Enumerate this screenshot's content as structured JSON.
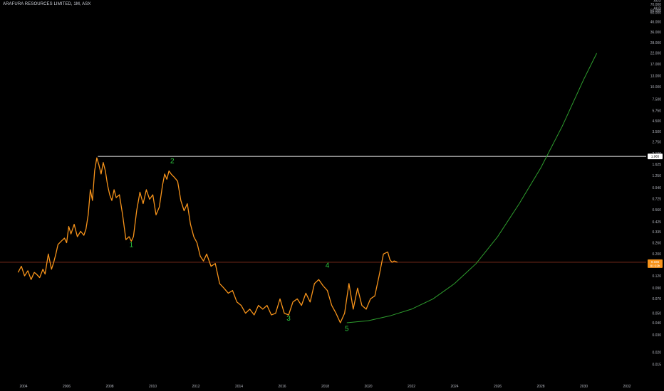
{
  "header": {
    "title": "ARAFURA RESOURCES LIMITED, 1M, ASX"
  },
  "colors": {
    "background": "#000000",
    "price_line": "#f7931a",
    "projection": "#2e9e2e",
    "resistance": "#d9d9d9",
    "current_price_line": "#7a2a1a",
    "wave_labels": "#2ecc40",
    "price_badge": "#f7931a",
    "resistance_badge": "#ffffff"
  },
  "chart_data": {
    "type": "line",
    "title": "ARAFURA RESOURCES LIMITED, 1M, ASX",
    "xlabel": "",
    "ylabel": "",
    "y_scale": "log",
    "currency": "AUD",
    "xlim": [
      2003.5,
      2033.5
    ],
    "ylim": [
      0.011,
      80
    ],
    "grid": false,
    "x_ticks": [
      "2004",
      "2006",
      "2008",
      "2010",
      "2012",
      "2014",
      "2016",
      "2018",
      "2020",
      "2022",
      "2024",
      "2026",
      "2028",
      "2030",
      "2032"
    ],
    "y_ticks": [
      "0.015",
      "0.020",
      "0.030",
      "0.040",
      "0.050",
      "0.070",
      "0.090",
      "0.120",
      "0.155",
      "0.200",
      "0.260",
      "0.335",
      "0.425",
      "0.560",
      "0.725",
      "0.940",
      "1.250",
      "1.625",
      "2.100",
      "2.750",
      "3.500",
      "4.500",
      "5.750",
      "7.500",
      "10.000",
      "13.000",
      "17.000",
      "22.000",
      "28.000",
      "36.000",
      "46.000",
      "60.000"
    ],
    "series": [
      {
        "x": [
          2003.75,
          2003.9,
          2004.05,
          2004.2,
          2004.35,
          2004.5,
          2004.6,
          2004.75,
          2004.9,
          2005.0,
          2005.15,
          2005.3,
          2005.4,
          2005.5,
          2005.6,
          2005.75,
          2005.9,
          2006.0,
          2006.1,
          2006.2,
          2006.35,
          2006.5,
          2006.65,
          2006.8,
          2006.9,
          2007.0,
          2007.1,
          2007.2,
          2007.3,
          2007.4,
          2007.5,
          2007.6,
          2007.7,
          2007.8,
          2007.9,
          2008.0,
          2008.1,
          2008.2,
          2008.3,
          2008.45,
          2008.6,
          2008.75,
          2008.9,
          2009.0,
          2009.1,
          2009.25,
          2009.4,
          2009.55,
          2009.7,
          2009.85,
          2010.0,
          2010.15,
          2010.3,
          2010.45,
          2010.55,
          2010.65,
          2010.75,
          2010.85,
          2011.0,
          2011.15,
          2011.3,
          2011.45,
          2011.6,
          2011.75,
          2011.9,
          2012.05,
          2012.2,
          2012.35,
          2012.5,
          2012.7,
          2012.9,
          2013.1,
          2013.3,
          2013.5,
          2013.7,
          2013.9,
          2014.1,
          2014.3,
          2014.5,
          2014.7,
          2014.9,
          2015.1,
          2015.3,
          2015.5,
          2015.7,
          2015.9,
          2016.1,
          2016.3,
          2016.5,
          2016.7,
          2016.9,
          2017.1,
          2017.3,
          2017.5,
          2017.7,
          2017.9,
          2018.1,
          2018.3,
          2018.5,
          2018.7,
          2018.9,
          2019.1,
          2019.3,
          2019.5,
          2019.7,
          2019.9,
          2020.1,
          2020.3,
          2020.5,
          2020.7,
          2020.9,
          2021.0,
          2021.1,
          2021.2,
          2021.35
        ],
        "y": [
          0.13,
          0.15,
          0.12,
          0.135,
          0.11,
          0.13,
          0.125,
          0.115,
          0.14,
          0.125,
          0.2,
          0.14,
          0.165,
          0.2,
          0.25,
          0.27,
          0.29,
          0.26,
          0.38,
          0.32,
          0.4,
          0.3,
          0.34,
          0.31,
          0.36,
          0.5,
          0.9,
          0.7,
          1.4,
          1.9,
          1.6,
          1.3,
          1.7,
          1.4,
          1.0,
          0.8,
          0.7,
          0.9,
          0.75,
          0.8,
          0.5,
          0.28,
          0.3,
          0.27,
          0.3,
          0.55,
          0.85,
          0.65,
          0.9,
          0.72,
          0.8,
          0.5,
          0.6,
          1.0,
          1.3,
          1.15,
          1.4,
          1.3,
          1.2,
          1.1,
          0.7,
          0.55,
          0.65,
          0.4,
          0.3,
          0.26,
          0.19,
          0.17,
          0.2,
          0.15,
          0.16,
          0.1,
          0.09,
          0.08,
          0.085,
          0.065,
          0.06,
          0.05,
          0.055,
          0.048,
          0.06,
          0.055,
          0.06,
          0.048,
          0.05,
          0.07,
          0.05,
          0.048,
          0.065,
          0.07,
          0.06,
          0.08,
          0.065,
          0.1,
          0.11,
          0.095,
          0.085,
          0.06,
          0.05,
          0.04,
          0.05,
          0.1,
          0.055,
          0.09,
          0.06,
          0.055,
          0.07,
          0.075,
          0.12,
          0.2,
          0.21,
          0.175,
          0.165,
          0.17,
          0.165
        ]
      }
    ],
    "resistance_level": 1.965,
    "current_price": 0.165,
    "badges": {
      "resistance": "1.965",
      "current_price": "0.165",
      "countdown": "81:22h"
    },
    "wave_labels": [
      {
        "label": "1",
        "x": 2009.0,
        "y": 0.235
      },
      {
        "label": "2",
        "x": 2010.9,
        "y": 1.68
      },
      {
        "label": "3",
        "x": 2016.3,
        "y": 0.042
      },
      {
        "label": "4",
        "x": 2018.1,
        "y": 0.145
      },
      {
        "label": "5",
        "x": 2019.0,
        "y": 0.033
      }
    ],
    "projection": {
      "x": [
        2019.0,
        2020.0,
        2021.0,
        2022.0,
        2023.0,
        2024.0,
        2025.0,
        2026.0,
        2027.0,
        2028.0,
        2029.0,
        2030.0,
        2030.6
      ],
      "y": [
        0.04,
        0.042,
        0.047,
        0.055,
        0.07,
        0.1,
        0.16,
        0.3,
        0.65,
        1.5,
        4.0,
        12.0,
        22.0
      ]
    },
    "axis_units": [
      "AUD",
      "70.000",
      "AUD",
      "60.000"
    ]
  }
}
